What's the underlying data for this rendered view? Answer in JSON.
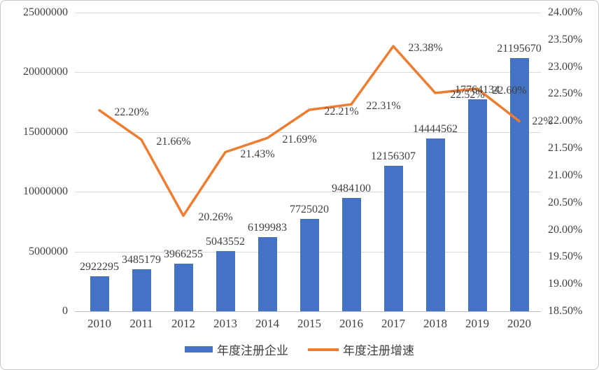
{
  "colors": {
    "bar": "#4472C4",
    "line": "#ED7D31",
    "grid": "#D9D9D9",
    "axis_line": "#BFBFBF",
    "text": "#3F3F3F",
    "border": "#C8C8C8"
  },
  "legend": {
    "bar_label": "年度注册企业",
    "line_label": "年度注册增速"
  },
  "chart_data": {
    "type": "combo",
    "categories": [
      "2010",
      "2011",
      "2012",
      "2013",
      "2014",
      "2015",
      "2016",
      "2017",
      "2018",
      "2019",
      "2020"
    ],
    "series": [
      {
        "name": "年度注册企业",
        "type": "bar",
        "axis": "left",
        "color": "#4472C4",
        "values": [
          2922295,
          3485179,
          3966255,
          5043552,
          6199983,
          7725020,
          9484100,
          12156307,
          14444562,
          17764134,
          21195670
        ],
        "labels": [
          "2922295",
          "3485179",
          "3966255",
          "5043552",
          "6199983",
          "7725020",
          "9484100",
          "12156307",
          "14444562",
          "17764134",
          "21195670"
        ]
      },
      {
        "name": "年度注册增速",
        "type": "line",
        "axis": "right",
        "color": "#ED7D31",
        "values": [
          22.2,
          21.66,
          20.26,
          21.43,
          21.69,
          22.21,
          22.31,
          23.38,
          22.52,
          22.6,
          22.0
        ],
        "labels": [
          "22.20%",
          "21.66%",
          "20.26%",
          "21.43%",
          "21.69%",
          "22.21%",
          "22.31%",
          "23.38%",
          "22.52%",
          "22.60%",
          "22%"
        ]
      }
    ],
    "left_axis": {
      "min": 0,
      "max": 25000000,
      "step": 5000000,
      "tick_labels": [
        "25000000",
        "20000000",
        "15000000",
        "10000000",
        "5000000",
        "0"
      ]
    },
    "right_axis": {
      "min": 18.5,
      "max": 24.0,
      "step": 0.5,
      "tick_labels": [
        "24.00%",
        "23.50%",
        "23.00%",
        "22.50%",
        "22.00%",
        "21.50%",
        "21.00%",
        "20.50%",
        "20.00%",
        "19.50%",
        "19.00%",
        "18.50%"
      ]
    },
    "grid": true,
    "legend_position": "bottom"
  }
}
